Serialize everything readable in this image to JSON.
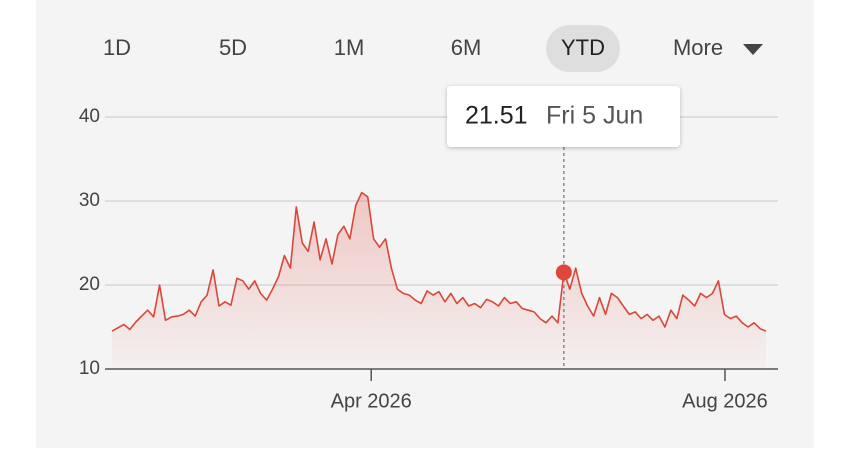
{
  "tabs": [
    "1D",
    "5D",
    "1M",
    "6M",
    "YTD",
    "More"
  ],
  "active_tab_index": 4,
  "chart_data": {
    "type": "line",
    "color": "#d9473b",
    "values": [
      14.5,
      14.9,
      15.3,
      14.7,
      15.6,
      16.3,
      17.0,
      16.2,
      20.0,
      15.8,
      16.2,
      16.3,
      16.5,
      17.0,
      16.3,
      18.0,
      18.8,
      21.8,
      17.5,
      18.0,
      17.6,
      20.8,
      20.5,
      19.5,
      20.5,
      19.0,
      18.2,
      19.5,
      21.0,
      23.5,
      22.0,
      29.3,
      25.0,
      24.0,
      27.5,
      23.0,
      25.5,
      22.5,
      26.0,
      27.0,
      25.5,
      29.5,
      31.0,
      30.5,
      25.5,
      24.5,
      25.5,
      22.0,
      19.5,
      19.0,
      18.8,
      18.2,
      17.8,
      19.3,
      18.8,
      19.2,
      18.0,
      19.0,
      17.8,
      18.5,
      17.5,
      17.8,
      17.3,
      18.3,
      18.0,
      17.5,
      18.5,
      17.8,
      18.0,
      17.2,
      17.0,
      16.8,
      16.0,
      15.5,
      16.3,
      15.5,
      21.51,
      19.5,
      22.0,
      19.0,
      17.5,
      16.3,
      18.5,
      16.5,
      19.0,
      18.5,
      17.5,
      16.5,
      16.8,
      16.0,
      16.5,
      15.8,
      16.3,
      15.0,
      17.0,
      16.0,
      18.8,
      18.2,
      17.5,
      19.0,
      18.5,
      19.0,
      20.5,
      16.5,
      16.0,
      16.3,
      15.5,
      15.0,
      15.5,
      14.8,
      14.5
    ],
    "xlim": [
      0,
      110
    ],
    "xticks": [
      {
        "value": 43.6,
        "label": "Apr 2026"
      },
      {
        "value": 103.1,
        "label": "Aug 2026"
      }
    ],
    "ylim": [
      10,
      40
    ],
    "yticks": [
      10,
      20,
      30,
      40
    ],
    "grid": true,
    "highlight": {
      "index": 76,
      "label": "Fri 5 Jun"
    }
  }
}
